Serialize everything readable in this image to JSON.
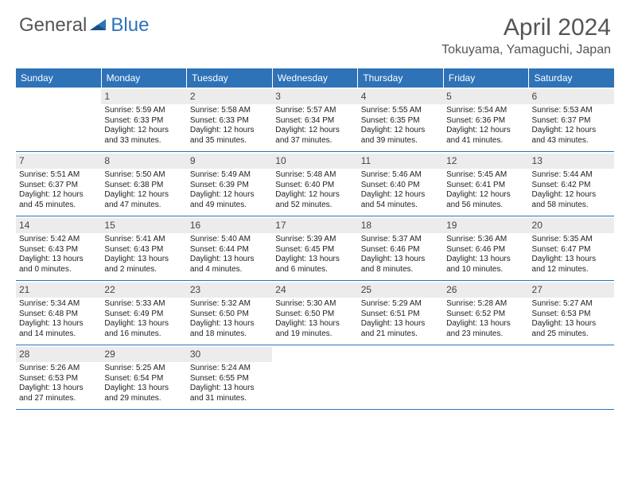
{
  "logo": {
    "general": "General",
    "blue": "Blue"
  },
  "title": "April 2024",
  "location": "Tokuyama, Yamaguchi, Japan",
  "colors": {
    "header_bg": "#2e72b8",
    "header_text": "#ffffff",
    "daynum_bg": "#ececec",
    "text": "#222222",
    "title_text": "#555555",
    "logo_gray": "#555555",
    "logo_blue": "#2e72b8",
    "background": "#ffffff",
    "divider": "#2e72b8"
  },
  "typography": {
    "title_fontsize": 30,
    "location_fontsize": 16,
    "logo_fontsize": 24,
    "header_fontsize": 12,
    "daynum_fontsize": 12,
    "body_fontsize": 10
  },
  "dayNames": [
    "Sunday",
    "Monday",
    "Tuesday",
    "Wednesday",
    "Thursday",
    "Friday",
    "Saturday"
  ],
  "weeks": [
    [
      {
        "empty": true
      },
      {
        "num": "1",
        "sunrise": "Sunrise: 5:59 AM",
        "sunset": "Sunset: 6:33 PM",
        "daylight": "Daylight: 12 hours and 33 minutes."
      },
      {
        "num": "2",
        "sunrise": "Sunrise: 5:58 AM",
        "sunset": "Sunset: 6:33 PM",
        "daylight": "Daylight: 12 hours and 35 minutes."
      },
      {
        "num": "3",
        "sunrise": "Sunrise: 5:57 AM",
        "sunset": "Sunset: 6:34 PM",
        "daylight": "Daylight: 12 hours and 37 minutes."
      },
      {
        "num": "4",
        "sunrise": "Sunrise: 5:55 AM",
        "sunset": "Sunset: 6:35 PM",
        "daylight": "Daylight: 12 hours and 39 minutes."
      },
      {
        "num": "5",
        "sunrise": "Sunrise: 5:54 AM",
        "sunset": "Sunset: 6:36 PM",
        "daylight": "Daylight: 12 hours and 41 minutes."
      },
      {
        "num": "6",
        "sunrise": "Sunrise: 5:53 AM",
        "sunset": "Sunset: 6:37 PM",
        "daylight": "Daylight: 12 hours and 43 minutes."
      }
    ],
    [
      {
        "num": "7",
        "sunrise": "Sunrise: 5:51 AM",
        "sunset": "Sunset: 6:37 PM",
        "daylight": "Daylight: 12 hours and 45 minutes."
      },
      {
        "num": "8",
        "sunrise": "Sunrise: 5:50 AM",
        "sunset": "Sunset: 6:38 PM",
        "daylight": "Daylight: 12 hours and 47 minutes."
      },
      {
        "num": "9",
        "sunrise": "Sunrise: 5:49 AM",
        "sunset": "Sunset: 6:39 PM",
        "daylight": "Daylight: 12 hours and 49 minutes."
      },
      {
        "num": "10",
        "sunrise": "Sunrise: 5:48 AM",
        "sunset": "Sunset: 6:40 PM",
        "daylight": "Daylight: 12 hours and 52 minutes."
      },
      {
        "num": "11",
        "sunrise": "Sunrise: 5:46 AM",
        "sunset": "Sunset: 6:40 PM",
        "daylight": "Daylight: 12 hours and 54 minutes."
      },
      {
        "num": "12",
        "sunrise": "Sunrise: 5:45 AM",
        "sunset": "Sunset: 6:41 PM",
        "daylight": "Daylight: 12 hours and 56 minutes."
      },
      {
        "num": "13",
        "sunrise": "Sunrise: 5:44 AM",
        "sunset": "Sunset: 6:42 PM",
        "daylight": "Daylight: 12 hours and 58 minutes."
      }
    ],
    [
      {
        "num": "14",
        "sunrise": "Sunrise: 5:42 AM",
        "sunset": "Sunset: 6:43 PM",
        "daylight": "Daylight: 13 hours and 0 minutes."
      },
      {
        "num": "15",
        "sunrise": "Sunrise: 5:41 AM",
        "sunset": "Sunset: 6:43 PM",
        "daylight": "Daylight: 13 hours and 2 minutes."
      },
      {
        "num": "16",
        "sunrise": "Sunrise: 5:40 AM",
        "sunset": "Sunset: 6:44 PM",
        "daylight": "Daylight: 13 hours and 4 minutes."
      },
      {
        "num": "17",
        "sunrise": "Sunrise: 5:39 AM",
        "sunset": "Sunset: 6:45 PM",
        "daylight": "Daylight: 13 hours and 6 minutes."
      },
      {
        "num": "18",
        "sunrise": "Sunrise: 5:37 AM",
        "sunset": "Sunset: 6:46 PM",
        "daylight": "Daylight: 13 hours and 8 minutes."
      },
      {
        "num": "19",
        "sunrise": "Sunrise: 5:36 AM",
        "sunset": "Sunset: 6:46 PM",
        "daylight": "Daylight: 13 hours and 10 minutes."
      },
      {
        "num": "20",
        "sunrise": "Sunrise: 5:35 AM",
        "sunset": "Sunset: 6:47 PM",
        "daylight": "Daylight: 13 hours and 12 minutes."
      }
    ],
    [
      {
        "num": "21",
        "sunrise": "Sunrise: 5:34 AM",
        "sunset": "Sunset: 6:48 PM",
        "daylight": "Daylight: 13 hours and 14 minutes."
      },
      {
        "num": "22",
        "sunrise": "Sunrise: 5:33 AM",
        "sunset": "Sunset: 6:49 PM",
        "daylight": "Daylight: 13 hours and 16 minutes."
      },
      {
        "num": "23",
        "sunrise": "Sunrise: 5:32 AM",
        "sunset": "Sunset: 6:50 PM",
        "daylight": "Daylight: 13 hours and 18 minutes."
      },
      {
        "num": "24",
        "sunrise": "Sunrise: 5:30 AM",
        "sunset": "Sunset: 6:50 PM",
        "daylight": "Daylight: 13 hours and 19 minutes."
      },
      {
        "num": "25",
        "sunrise": "Sunrise: 5:29 AM",
        "sunset": "Sunset: 6:51 PM",
        "daylight": "Daylight: 13 hours and 21 minutes."
      },
      {
        "num": "26",
        "sunrise": "Sunrise: 5:28 AM",
        "sunset": "Sunset: 6:52 PM",
        "daylight": "Daylight: 13 hours and 23 minutes."
      },
      {
        "num": "27",
        "sunrise": "Sunrise: 5:27 AM",
        "sunset": "Sunset: 6:53 PM",
        "daylight": "Daylight: 13 hours and 25 minutes."
      }
    ],
    [
      {
        "num": "28",
        "sunrise": "Sunrise: 5:26 AM",
        "sunset": "Sunset: 6:53 PM",
        "daylight": "Daylight: 13 hours and 27 minutes."
      },
      {
        "num": "29",
        "sunrise": "Sunrise: 5:25 AM",
        "sunset": "Sunset: 6:54 PM",
        "daylight": "Daylight: 13 hours and 29 minutes."
      },
      {
        "num": "30",
        "sunrise": "Sunrise: 5:24 AM",
        "sunset": "Sunset: 6:55 PM",
        "daylight": "Daylight: 13 hours and 31 minutes."
      },
      {
        "empty": true
      },
      {
        "empty": true
      },
      {
        "empty": true
      },
      {
        "empty": true
      }
    ]
  ]
}
